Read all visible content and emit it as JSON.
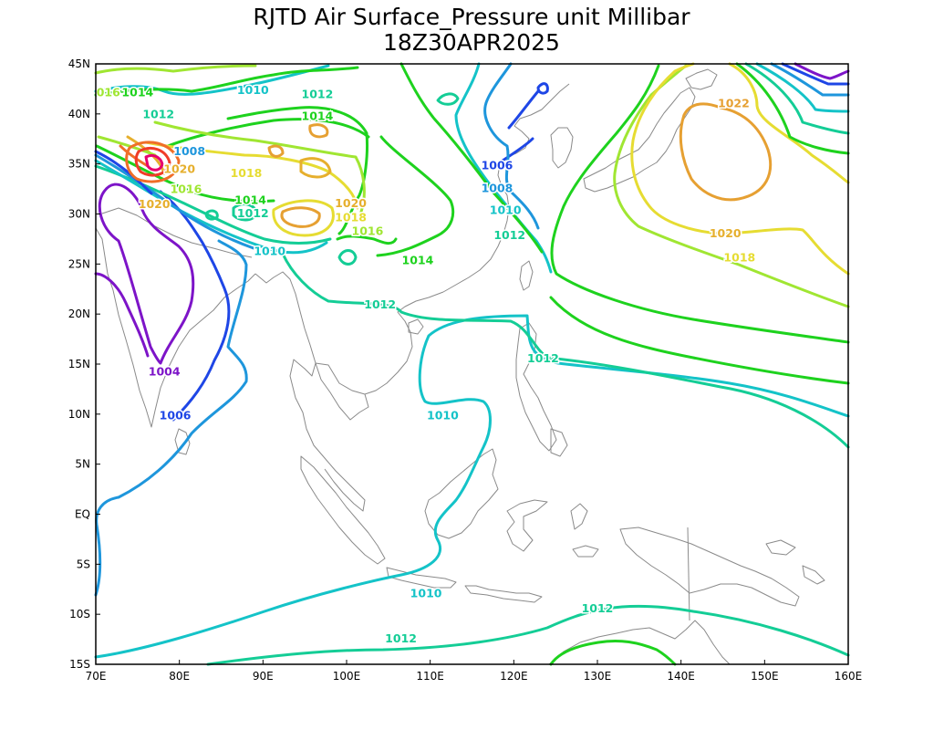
{
  "title": {
    "line1": "RJTD Air Surface_Pressure unit Millibar",
    "line2": "18Z30APR2025"
  },
  "axes": {
    "x_ticks": [
      "70E",
      "80E",
      "90E",
      "100E",
      "110E",
      "120E",
      "130E",
      "140E",
      "150E",
      "160E"
    ],
    "y_ticks": [
      "45N",
      "40N",
      "35N",
      "30N",
      "25N",
      "20N",
      "15N",
      "10N",
      "5N",
      "EQ",
      "5S",
      "10S",
      "15S"
    ]
  },
  "colors": {
    "1004": "#7d14c8",
    "1006": "#1e46e6",
    "1008": "#1e96dc",
    "1010": "#14c3c8",
    "1012": "#14cd96",
    "1014": "#1ed21e",
    "1016": "#a0e632",
    "1018": "#e6dc32",
    "1020": "#e6af2d",
    "1022": "#e6a032",
    "1024": "#f06e28",
    "1026": "#f03c28",
    "1028": "#e6006e",
    "1030": "#b400c8"
  },
  "chart_data": {
    "type": "contour-map",
    "title": "RJTD Air Surface_Pressure unit Millibar",
    "subtitle": "18Z30APR2025",
    "xlim": [
      70,
      160
    ],
    "ylim": [
      -15,
      45
    ],
    "unit": "Millibar",
    "labels": [
      {
        "text": "1012",
        "lon": 106.5,
        "lat": -12.5,
        "level": 1012
      },
      {
        "text": "1012",
        "lon": 130.0,
        "lat": -9.5,
        "level": 1012
      },
      {
        "text": "1010",
        "lon": 109.5,
        "lat": -8.0,
        "level": 1010
      },
      {
        "text": "1010",
        "lon": 111.5,
        "lat": 9.8,
        "level": 1010
      },
      {
        "text": "1012",
        "lon": 123.5,
        "lat": 15.5,
        "level": 1012
      },
      {
        "text": "1012",
        "lon": 104.0,
        "lat": 20.9,
        "level": 1012
      },
      {
        "text": "1004",
        "lon": 78.2,
        "lat": 14.2,
        "level": 1004
      },
      {
        "text": "1006",
        "lon": 79.5,
        "lat": 9.8,
        "level": 1006
      },
      {
        "text": "1010",
        "lon": 90.8,
        "lat": 26.2,
        "level": 1010
      },
      {
        "text": "1014",
        "lon": 108.5,
        "lat": 25.3,
        "level": 1014
      },
      {
        "text": "1016",
        "lon": 102.5,
        "lat": 28.2,
        "level": 1016
      },
      {
        "text": "1018",
        "lon": 100.5,
        "lat": 29.6,
        "level": 1018
      },
      {
        "text": "1012",
        "lon": 119.5,
        "lat": 27.8,
        "level": 1012
      },
      {
        "text": "1010",
        "lon": 119.0,
        "lat": 30.3,
        "level": 1010
      },
      {
        "text": "1008",
        "lon": 118.0,
        "lat": 32.5,
        "level": 1008
      },
      {
        "text": "1006",
        "lon": 118.0,
        "lat": 34.8,
        "level": 1006
      },
      {
        "text": "1020",
        "lon": 145.3,
        "lat": 28.0,
        "level": 1020
      },
      {
        "text": "1018",
        "lon": 147.0,
        "lat": 25.6,
        "level": 1018
      },
      {
        "text": "1022",
        "lon": 146.3,
        "lat": 41.0,
        "level": 1022
      },
      {
        "text": "1012",
        "lon": 96.5,
        "lat": 41.9,
        "level": 1012
      },
      {
        "text": "1014",
        "lon": 96.5,
        "lat": 39.7,
        "level": 1014
      },
      {
        "text": "1010",
        "lon": 88.8,
        "lat": 42.3,
        "level": 1010
      },
      {
        "text": "1012",
        "lon": 77.5,
        "lat": 39.9,
        "level": 1012
      },
      {
        "text": "016",
        "lon": 71.5,
        "lat": 42.1,
        "level": 1016
      },
      {
        "text": "1014",
        "lon": 75.0,
        "lat": 42.1,
        "level": 1014
      },
      {
        "text": "1008",
        "lon": 81.2,
        "lat": 36.2,
        "level": 1008
      },
      {
        "text": "1020",
        "lon": 80.0,
        "lat": 34.4,
        "level": 1020
      },
      {
        "text": "1018",
        "lon": 88.0,
        "lat": 34.0,
        "level": 1018
      },
      {
        "text": "1016",
        "lon": 80.8,
        "lat": 32.4,
        "level": 1016
      },
      {
        "text": "1020",
        "lon": 77.0,
        "lat": 30.9,
        "level": 1020
      },
      {
        "text": "1014",
        "lon": 88.5,
        "lat": 31.3,
        "level": 1014
      },
      {
        "text": "1012",
        "lon": 88.8,
        "lat": 30.0,
        "level": 1012
      },
      {
        "text": "1020",
        "lon": 100.5,
        "lat": 31.0,
        "level": 1020
      }
    ]
  }
}
